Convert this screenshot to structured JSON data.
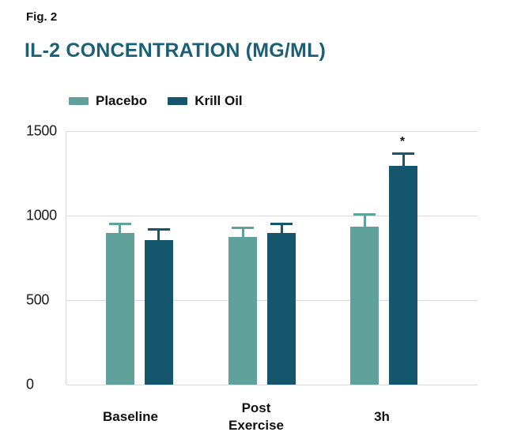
{
  "figure": {
    "label": "Fig. 2",
    "title": "IL-2 CONCENTRATION (MG/ML)"
  },
  "colors": {
    "title": "#1A6076",
    "grid": "#D9D9D9",
    "text": "#111111",
    "placebo": "#61A19B",
    "krill_oil": "#15566C"
  },
  "chart_data": {
    "type": "bar",
    "title": "IL-2 CONCENTRATION (MG/ML)",
    "xlabel": "",
    "ylabel": "IL-2 concentration (mg/ml)",
    "categories": [
      "Baseline",
      "Post Exercise",
      "3h"
    ],
    "category_lines": [
      [
        "Baseline"
      ],
      [
        "Post",
        "Exercise"
      ],
      [
        "3h"
      ]
    ],
    "series": [
      {
        "name": "Placebo",
        "color": "#61A19B",
        "values": [
          895,
          875,
          935
        ],
        "errors": [
          65,
          60,
          80
        ]
      },
      {
        "name": "Krill Oil",
        "color": "#15566C",
        "values": [
          855,
          895,
          1295
        ],
        "errors": [
          70,
          65,
          80
        ]
      }
    ],
    "ylim": [
      0,
      1500
    ],
    "yticks": [
      0,
      500,
      1000,
      1500
    ],
    "grid": true,
    "legend_position": "top",
    "annotations": [
      {
        "text": "*",
        "series_index": 1,
        "category_index": 2,
        "meaning": "significant difference"
      }
    ]
  }
}
